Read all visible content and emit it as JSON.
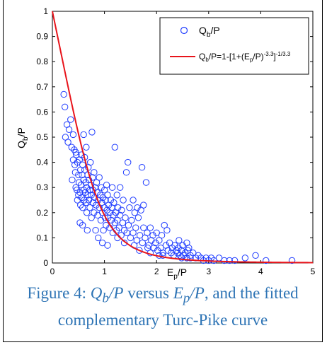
{
  "chart_data": {
    "type": "scatter",
    "x_label_main": "E",
    "x_label_sub": "p",
    "x_label_tail": "/P",
    "y_label_main": "Q",
    "y_label_sub": "b",
    "y_label_tail": "/P",
    "xlim": [
      0,
      5
    ],
    "ylim": [
      0,
      1
    ],
    "x_ticks": [
      "0",
      "1",
      "2",
      "3",
      "4",
      "5"
    ],
    "y_ticks": [
      "0",
      "0.1",
      "0.2",
      "0.3",
      "0.4",
      "0.5",
      "0.6",
      "0.7",
      "0.8",
      "0.9",
      "1"
    ],
    "grid": false,
    "legend_position": "top-right",
    "legend": {
      "scatter_main": "Q",
      "scatter_sub": "b",
      "scatter_tail": "/P",
      "fit_main": "Q",
      "fit_sub1": "b",
      "fit_mid1": "/P=1-[1+(E",
      "fit_sub2": "p",
      "fit_mid2": "/P)",
      "fit_sup1": "-3.3",
      "fit_mid3": "]",
      "fit_sup2": "-1/3.3"
    },
    "colors": {
      "scatter": "#1f3cff",
      "fit": "#e8141b",
      "axis": "#000000"
    },
    "fit_curve": {
      "name": "Turc-Pike complementary",
      "exponent": 3.3,
      "x_range": [
        0,
        5
      ]
    },
    "series": [
      {
        "type": "scatter",
        "points": [
          [
            0.22,
            0.67
          ],
          [
            0.24,
            0.62
          ],
          [
            0.25,
            0.5
          ],
          [
            0.28,
            0.55
          ],
          [
            0.3,
            0.48
          ],
          [
            0.32,
            0.53
          ],
          [
            0.35,
            0.57
          ],
          [
            0.37,
            0.46
          ],
          [
            0.38,
            0.33
          ],
          [
            0.4,
            0.51
          ],
          [
            0.4,
            0.41
          ],
          [
            0.42,
            0.45
          ],
          [
            0.43,
            0.39
          ],
          [
            0.44,
            0.36
          ],
          [
            0.45,
            0.44
          ],
          [
            0.45,
            0.3
          ],
          [
            0.46,
            0.43
          ],
          [
            0.47,
            0.29
          ],
          [
            0.48,
            0.4
          ],
          [
            0.48,
            0.25
          ],
          [
            0.5,
            0.35
          ],
          [
            0.5,
            0.27
          ],
          [
            0.51,
            0.32
          ],
          [
            0.52,
            0.41
          ],
          [
            0.53,
            0.28
          ],
          [
            0.54,
            0.37
          ],
          [
            0.54,
            0.23
          ],
          [
            0.55,
            0.31
          ],
          [
            0.56,
            0.43
          ],
          [
            0.56,
            0.26
          ],
          [
            0.57,
            0.35
          ],
          [
            0.58,
            0.22
          ],
          [
            0.58,
            0.39
          ],
          [
            0.6,
            0.29
          ],
          [
            0.6,
            0.51
          ],
          [
            0.6,
            0.33
          ],
          [
            0.61,
            0.25
          ],
          [
            0.62,
            0.42
          ],
          [
            0.62,
            0.37
          ],
          [
            0.63,
            0.28
          ],
          [
            0.64,
            0.32
          ],
          [
            0.65,
            0.24
          ],
          [
            0.65,
            0.46
          ],
          [
            0.66,
            0.3
          ],
          [
            0.66,
            0.2
          ],
          [
            0.68,
            0.35
          ],
          [
            0.68,
            0.27
          ],
          [
            0.69,
            0.38
          ],
          [
            0.7,
            0.25
          ],
          [
            0.7,
            0.33
          ],
          [
            0.72,
            0.29
          ],
          [
            0.72,
            0.22
          ],
          [
            0.73,
            0.4
          ],
          [
            0.74,
            0.31
          ],
          [
            0.75,
            0.27
          ],
          [
            0.75,
            0.18
          ],
          [
            0.76,
            0.52
          ],
          [
            0.77,
            0.34
          ],
          [
            0.78,
            0.24
          ],
          [
            0.78,
            0.29
          ],
          [
            0.8,
            0.2
          ],
          [
            0.8,
            0.36
          ],
          [
            0.81,
            0.26
          ],
          [
            0.82,
            0.3
          ],
          [
            0.83,
            0.13
          ],
          [
            0.84,
            0.23
          ],
          [
            0.85,
            0.32
          ],
          [
            0.86,
            0.28
          ],
          [
            0.87,
            0.19
          ],
          [
            0.88,
            0.25
          ],
          [
            0.9,
            0.34
          ],
          [
            0.9,
            0.22
          ],
          [
            0.92,
            0.27
          ],
          [
            0.93,
            0.17
          ],
          [
            0.94,
            0.3
          ],
          [
            0.95,
            0.24
          ],
          [
            0.96,
            0.2
          ],
          [
            0.97,
            0.26
          ],
          [
            0.98,
            0.13
          ],
          [
            1.0,
            0.29
          ],
          [
            1.0,
            0.22
          ],
          [
            1.01,
            0.18
          ],
          [
            1.02,
            0.25
          ],
          [
            1.03,
            0.15
          ],
          [
            1.04,
            0.31
          ],
          [
            1.05,
            0.21
          ],
          [
            1.06,
            0.27
          ],
          [
            1.07,
            0.18
          ],
          [
            1.08,
            0.23
          ],
          [
            1.1,
            0.2
          ],
          [
            1.1,
            0.14
          ],
          [
            1.12,
            0.25
          ],
          [
            1.13,
            0.17
          ],
          [
            1.14,
            0.22
          ],
          [
            1.15,
            0.3
          ],
          [
            1.16,
            0.12
          ],
          [
            1.17,
            0.19
          ],
          [
            1.18,
            0.24
          ],
          [
            1.2,
            0.16
          ],
          [
            1.2,
            0.46
          ],
          [
            1.22,
            0.2
          ],
          [
            1.23,
            0.13
          ],
          [
            1.24,
            0.27
          ],
          [
            1.25,
            0.17
          ],
          [
            1.26,
            0.22
          ],
          [
            1.28,
            0.14
          ],
          [
            1.3,
            0.19
          ],
          [
            1.3,
            0.3
          ],
          [
            1.32,
            0.11
          ],
          [
            1.33,
            0.21
          ],
          [
            1.35,
            0.16
          ],
          [
            1.36,
            0.25
          ],
          [
            1.38,
            0.13
          ],
          [
            1.4,
            0.18
          ],
          [
            1.42,
            0.36
          ],
          [
            1.43,
            0.12
          ],
          [
            1.45,
            0.4
          ],
          [
            1.46,
            0.15
          ],
          [
            1.48,
            0.22
          ],
          [
            1.5,
            0.1
          ],
          [
            1.52,
            0.17
          ],
          [
            1.55,
            0.12
          ],
          [
            1.58,
            0.2
          ],
          [
            1.6,
            0.14
          ],
          [
            1.62,
            0.09
          ],
          [
            1.65,
            0.18
          ],
          [
            1.68,
            0.11
          ],
          [
            1.7,
            0.21
          ],
          [
            1.72,
            0.38
          ],
          [
            1.73,
            0.08
          ],
          [
            1.75,
            0.14
          ],
          [
            1.78,
            0.1
          ],
          [
            1.8,
            0.32
          ],
          [
            1.82,
            0.12
          ],
          [
            1.85,
            0.07
          ],
          [
            1.88,
            0.14
          ],
          [
            1.9,
            0.09
          ],
          [
            1.93,
            0.11
          ],
          [
            1.95,
            0.06
          ],
          [
            1.98,
            0.08
          ],
          [
            2.0,
            0.12
          ],
          [
            2.02,
            0.05
          ],
          [
            2.05,
            0.09
          ],
          [
            2.08,
            0.06
          ],
          [
            2.1,
            0.11
          ],
          [
            2.12,
            0.04
          ],
          [
            2.15,
            0.15
          ],
          [
            2.18,
            0.07
          ],
          [
            2.2,
            0.13
          ],
          [
            2.22,
            0.05
          ],
          [
            2.25,
            0.08
          ],
          [
            2.28,
            0.04
          ],
          [
            2.3,
            0.06
          ],
          [
            2.33,
            0.03
          ],
          [
            2.35,
            0.07
          ],
          [
            2.38,
            0.05
          ],
          [
            2.4,
            0.04
          ],
          [
            2.42,
            0.06
          ],
          [
            2.45,
            0.03
          ],
          [
            2.48,
            0.05
          ],
          [
            2.5,
            0.07
          ],
          [
            2.52,
            0.03
          ],
          [
            2.55,
            0.04
          ],
          [
            2.58,
            0.02
          ],
          [
            2.6,
            0.05
          ],
          [
            2.62,
            0.06
          ],
          [
            2.65,
            0.03
          ],
          [
            2.7,
            0.04
          ],
          [
            2.75,
            0.02
          ],
          [
            2.8,
            0.03
          ],
          [
            2.85,
            0.02
          ],
          [
            2.9,
            0.01
          ],
          [
            2.95,
            0.02
          ],
          [
            3.0,
            0.01
          ],
          [
            3.05,
            0.02
          ],
          [
            3.1,
            0.01
          ],
          [
            3.2,
            0.02
          ],
          [
            3.3,
            0.01
          ],
          [
            3.4,
            0.01
          ],
          [
            3.5,
            0.01
          ],
          [
            3.7,
            0.02
          ],
          [
            3.9,
            0.03
          ],
          [
            4.1,
            0.01
          ],
          [
            4.6,
            0.01
          ],
          [
            1.57,
            0.07
          ],
          [
            1.67,
            0.05
          ],
          [
            1.88,
            0.04
          ],
          [
            0.53,
            0.16
          ],
          [
            0.58,
            0.15
          ],
          [
            0.67,
            0.13
          ],
          [
            0.88,
            0.1
          ],
          [
            0.96,
            0.08
          ],
          [
            1.06,
            0.07
          ],
          [
            1.25,
            0.1
          ],
          [
            1.38,
            0.08
          ],
          [
            1.55,
            0.25
          ],
          [
            1.63,
            0.22
          ],
          [
            1.75,
            0.23
          ],
          [
            1.83,
            0.06
          ],
          [
            2.05,
            0.03
          ],
          [
            2.43,
            0.09
          ],
          [
            2.48,
            0.02
          ],
          [
            2.58,
            0.08
          ],
          [
            2.12,
            0.03
          ],
          [
            2.65,
            0.02
          ]
        ]
      }
    ]
  },
  "caption": {
    "prefix": "Figure 4: ",
    "q_main": "Q",
    "q_sub": "b",
    "q_tail": "/P",
    "versus": " versus ",
    "e_main": "E",
    "e_sub": "p",
    "e_tail": "/P",
    "line1_end": ", and the fitted",
    "line2": "complementary Turc-Pike curve"
  }
}
